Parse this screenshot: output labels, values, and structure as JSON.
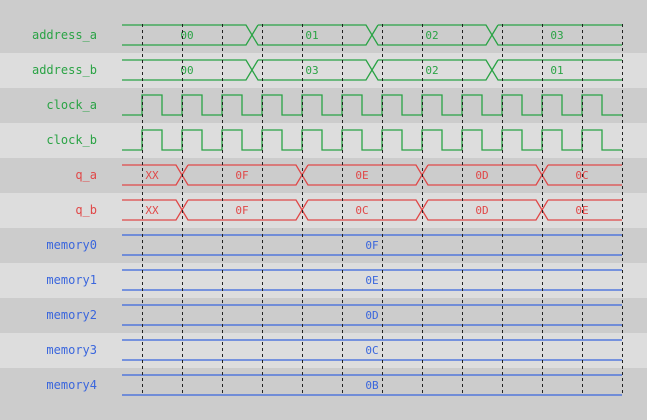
{
  "colors": {
    "row_dark": "#cccccc",
    "row_light": "#dddddd",
    "grid": "#222222"
  },
  "time_end": 25,
  "grid_times": [
    1,
    3,
    5,
    7,
    9,
    11,
    13,
    15,
    17,
    19,
    21,
    23,
    25
  ],
  "signals": [
    {
      "name": "address_a",
      "kind": "bus",
      "color": "#2aa345",
      "segments": [
        {
          "value": "00",
          "start": 0,
          "end": 6.5
        },
        {
          "value": "01",
          "start": 6.5,
          "end": 12.5
        },
        {
          "value": "02",
          "start": 12.5,
          "end": 18.5
        },
        {
          "value": "03",
          "start": 18.5,
          "end": 25
        }
      ]
    },
    {
      "name": "address_b",
      "kind": "bus",
      "color": "#2aa345",
      "segments": [
        {
          "value": "00",
          "start": 0,
          "end": 6.5
        },
        {
          "value": "03",
          "start": 6.5,
          "end": 12.5
        },
        {
          "value": "02",
          "start": 12.5,
          "end": 18.5
        },
        {
          "value": "01",
          "start": 18.5,
          "end": 25
        }
      ]
    },
    {
      "name": "clock_a",
      "kind": "clock",
      "color": "#2aa345",
      "first_rise": 1,
      "half_period": 1
    },
    {
      "name": "clock_b",
      "kind": "clock",
      "color": "#2aa345",
      "first_rise": 1,
      "half_period": 1
    },
    {
      "name": "q_a",
      "kind": "bus",
      "color": "#e04848",
      "segments": [
        {
          "value": "XX",
          "start": 0,
          "end": 3
        },
        {
          "value": "0F",
          "start": 3,
          "end": 9
        },
        {
          "value": "0E",
          "start": 9,
          "end": 15
        },
        {
          "value": "0D",
          "start": 15,
          "end": 21
        },
        {
          "value": "0C",
          "start": 21,
          "end": 25
        }
      ]
    },
    {
      "name": "q_b",
      "kind": "bus",
      "color": "#e04848",
      "segments": [
        {
          "value": "XX",
          "start": 0,
          "end": 3
        },
        {
          "value": "0F",
          "start": 3,
          "end": 9
        },
        {
          "value": "0C",
          "start": 9,
          "end": 15
        },
        {
          "value": "0D",
          "start": 15,
          "end": 21
        },
        {
          "value": "0E",
          "start": 21,
          "end": 25
        }
      ]
    },
    {
      "name": "memory0",
      "kind": "bus",
      "color": "#3a66dd",
      "segments": [
        {
          "value": "0F",
          "start": 0,
          "end": 25
        }
      ]
    },
    {
      "name": "memory1",
      "kind": "bus",
      "color": "#3a66dd",
      "segments": [
        {
          "value": "0E",
          "start": 0,
          "end": 25
        }
      ]
    },
    {
      "name": "memory2",
      "kind": "bus",
      "color": "#3a66dd",
      "segments": [
        {
          "value": "0D",
          "start": 0,
          "end": 25
        }
      ]
    },
    {
      "name": "memory3",
      "kind": "bus",
      "color": "#3a66dd",
      "segments": [
        {
          "value": "0C",
          "start": 0,
          "end": 25
        }
      ]
    },
    {
      "name": "memory4",
      "kind": "bus",
      "color": "#3a66dd",
      "segments": [
        {
          "value": "0B",
          "start": 0,
          "end": 25
        }
      ]
    }
  ]
}
